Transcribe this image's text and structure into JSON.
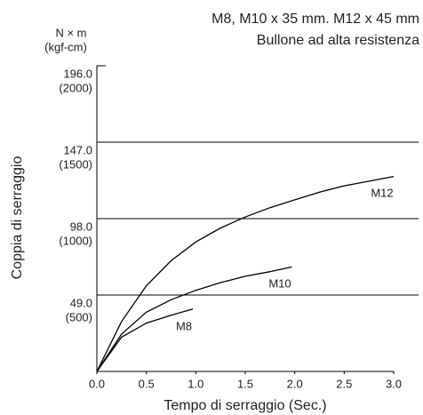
{
  "chart_data": {
    "type": "line",
    "title": "M8, M10 x 35 mm. M12 x 45 mm",
    "subtitle": "Bullone ad alta resistenza",
    "y_unit": "N × m",
    "y_unit_secondary": "(kgf-cm)",
    "ylabel": "Coppia di serraggio",
    "xlabel": "Tempo di serraggio (Sec.)",
    "xlim": [
      0,
      3
    ],
    "ylim": [
      0,
      196
    ],
    "xticks": [
      {
        "value": 0,
        "label": "0.0"
      },
      0.5,
      {
        "value": 1,
        "label": "1.0"
      },
      1.5,
      {
        "value": 2,
        "label": "2.0"
      },
      2.5,
      {
        "value": 3,
        "label": "3.0"
      }
    ],
    "yticks": [
      {
        "value": 49,
        "label": "49.0"
      },
      {
        "value": 98,
        "label": "98.0"
      },
      {
        "value": 147,
        "label": "147.0"
      },
      {
        "value": 196,
        "label": "196.0"
      }
    ],
    "ytick_secondary_labels": [
      "(500)",
      "(1000)",
      "(1500)",
      "(2000)"
    ],
    "grid": true,
    "series": [
      {
        "name": "M12",
        "color": "#000000",
        "x": [
          0,
          0.25,
          0.5,
          0.75,
          1,
          1.25,
          1.5,
          1.75,
          2,
          2.25,
          2.5,
          2.75,
          3
        ],
        "values": [
          0,
          32,
          55,
          71,
          83,
          92,
          99,
          105,
          110,
          115,
          119,
          122,
          125
        ]
      },
      {
        "name": "M10",
        "color": "#000000",
        "x": [
          0,
          0.25,
          0.5,
          0.75,
          1,
          1.25,
          1.5,
          1.75,
          1.97
        ],
        "values": [
          0,
          24,
          38,
          46,
          52,
          57,
          61,
          64,
          67
        ]
      },
      {
        "name": "M8",
        "color": "#000000",
        "x": [
          0,
          0.25,
          0.5,
          0.75,
          0.97
        ],
        "values": [
          0,
          22,
          31,
          36,
          40
        ]
      }
    ]
  }
}
